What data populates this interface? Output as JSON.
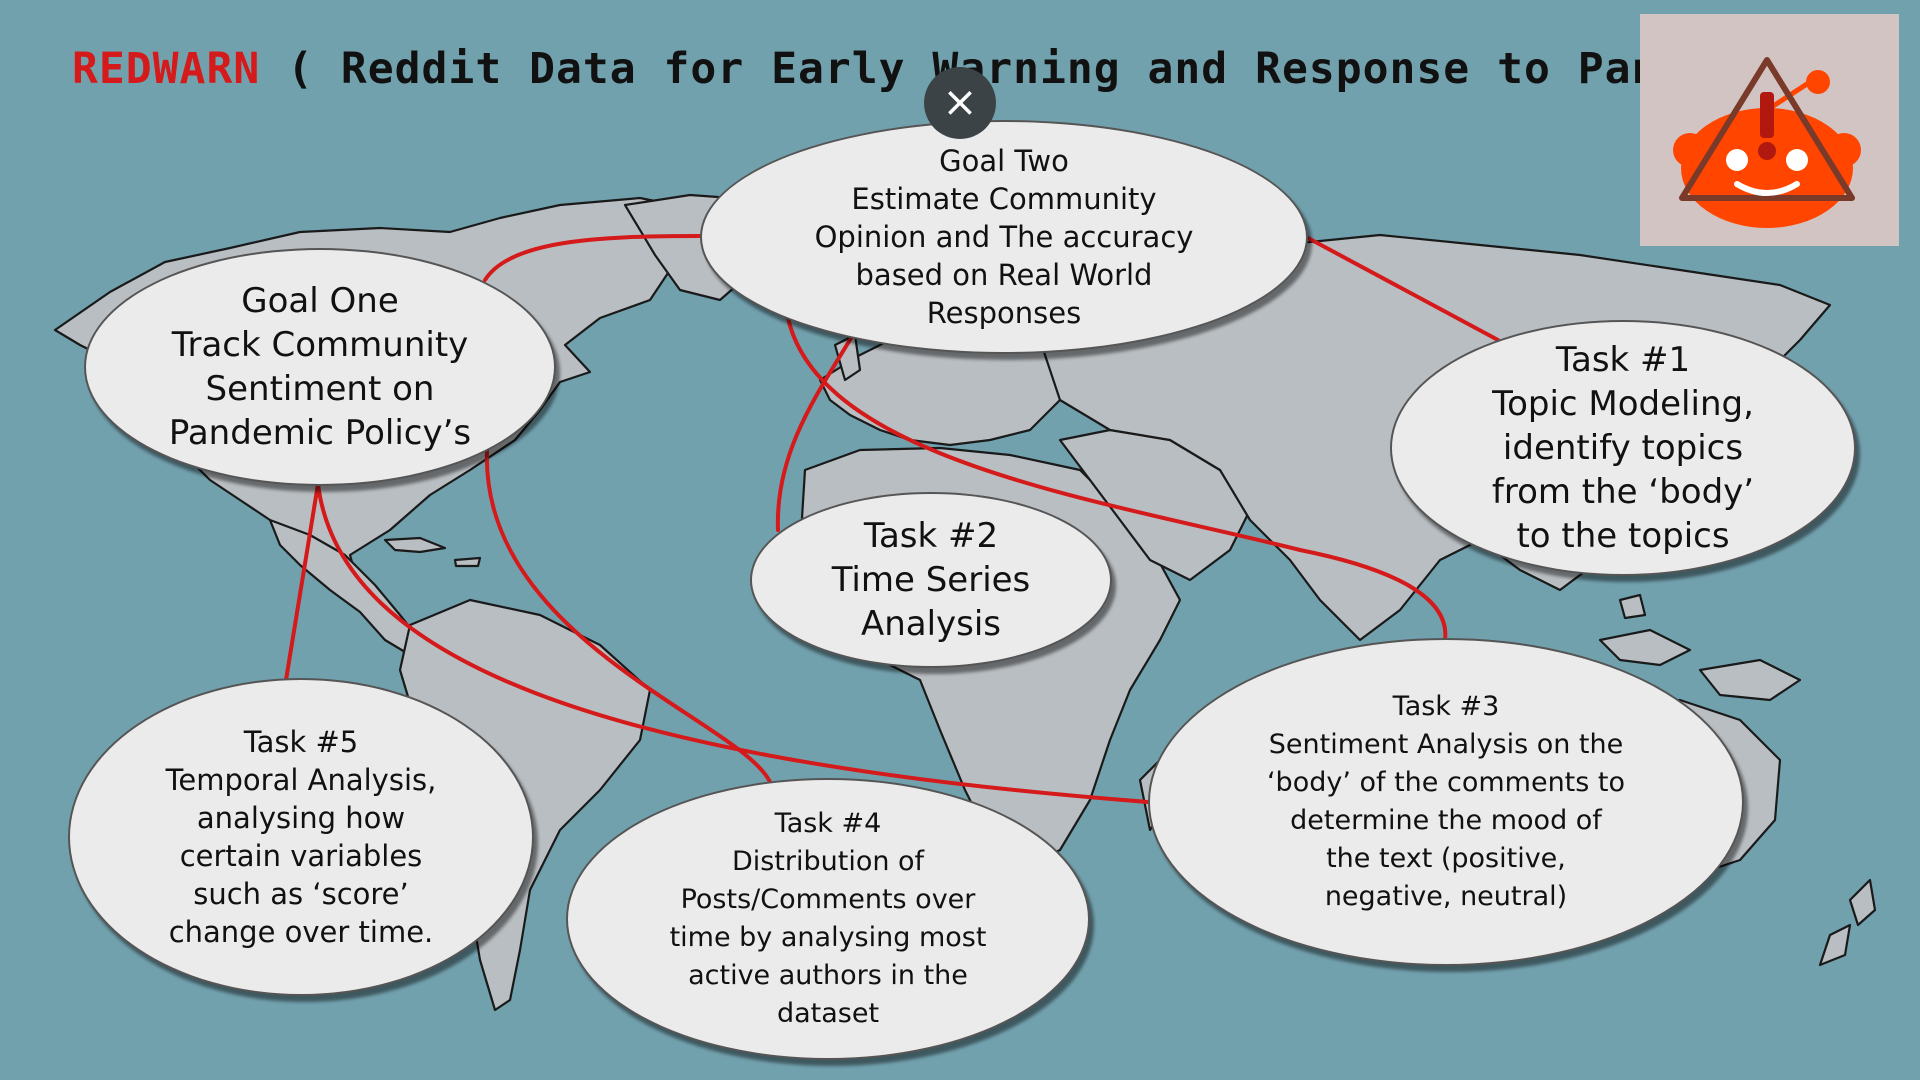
{
  "title": {
    "brand": "REDWARN",
    "rest": " ( Reddit Data for Early Warning and Response to Pandemics )"
  },
  "colors": {
    "background": "#72a1ae",
    "land": "#b9bec2",
    "connector": "#d41a1a",
    "oval": "#ebebeb",
    "logo_orange": "#ff4500"
  },
  "close_button": {
    "icon": "close-icon",
    "glyph": "×"
  },
  "logo": {
    "icon": "reddit-warning-icon"
  },
  "nodes": {
    "goal_one": {
      "label": "Goal One\nTrack Community\nSentiment on\nPandemic Policy’s"
    },
    "goal_two": {
      "label": "Goal Two\nEstimate Community\nOpinion and The accuracy\nbased on Real World\nResponses"
    },
    "task1": {
      "label": "Task #1\nTopic Modeling,\nidentify topics\nfrom the ‘body’\nto the topics"
    },
    "task2": {
      "label": "Task #2\nTime Series\nAnalysis"
    },
    "task3": {
      "label": "Task #3\nSentiment Analysis on the\n‘body’ of the comments to\ndetermine the mood of\nthe text (positive,\nnegative, neutral)"
    },
    "task4": {
      "label": "Task #4\nDistribution of\nPosts/Comments over\ntime by analysing most\nactive authors in the\ndataset"
    },
    "task5": {
      "label": "Task #5\nTemporal Analysis,\nanalysing how\ncertain variables\nsuch as ‘score’\nchange over time."
    }
  }
}
